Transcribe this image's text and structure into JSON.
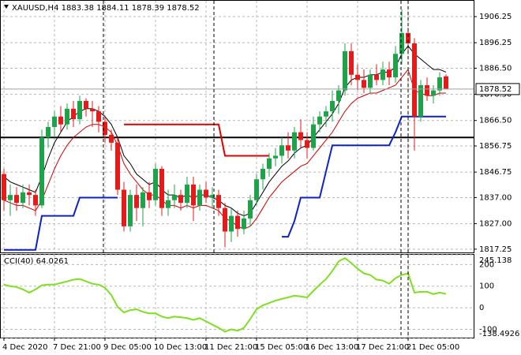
{
  "chart_data": {
    "type": "candlestick",
    "title": "XAUUSD,H4",
    "categories": [
      "4 Dec 2020",
      null,
      null,
      null,
      null,
      null,
      null,
      null,
      "7 Dec 21:00",
      null,
      null,
      null,
      null,
      null,
      null,
      null,
      "9 Dec 05:00",
      null,
      null,
      null,
      null,
      null,
      null,
      null,
      "10 Dec 13:00",
      null,
      null,
      null,
      null,
      null,
      null,
      null,
      "11 Dec 21:00",
      null,
      null,
      null,
      null,
      null,
      null,
      null,
      "15 Dec 05:00",
      null,
      null,
      null,
      null,
      null,
      null,
      null,
      "16 Dec 13:00",
      null,
      null,
      null,
      null,
      null,
      null,
      null,
      "17 Dec 21:00",
      null,
      null,
      null,
      null,
      null,
      null,
      null,
      "21 Dec 05:00",
      null,
      null,
      null,
      null,
      null,
      null
    ],
    "open": [
      1846,
      1836,
      1838,
      1835,
      1839,
      1838,
      1834,
      1860,
      1864,
      1868,
      1865,
      1871,
      1867,
      1874,
      1871,
      1870,
      1866,
      1861,
      1858,
      1840,
      1826,
      1838,
      1833,
      1839,
      1836,
      1848,
      1833,
      1836,
      1838,
      1835,
      1842,
      1834,
      1840,
      1837,
      1838,
      1833,
      1824,
      1830,
      1825,
      1829,
      1836,
      1844,
      1848,
      1852,
      1853,
      1857,
      1855,
      1862,
      1859,
      1856,
      1865,
      1868,
      1870,
      1874,
      1878,
      1893,
      1884,
      1882,
      1879,
      1884,
      1882,
      1886,
      1883,
      1892,
      1900,
      1896,
      1868,
      1880,
      1876,
      1878,
      1883.38
    ],
    "high": [
      1848,
      1842,
      1841,
      1842,
      1842,
      1840,
      1863,
      1866,
      1870,
      1872,
      1873,
      1874,
      1876,
      1875,
      1874,
      1872,
      1868,
      1863,
      1860,
      1843,
      1840,
      1842,
      1841,
      1843,
      1850,
      1849,
      1840,
      1842,
      1840,
      1845,
      1845,
      1842,
      1843,
      1841,
      1840,
      1835,
      1833,
      1832,
      1832,
      1838,
      1846,
      1850,
      1854,
      1856,
      1860,
      1862,
      1864,
      1867,
      1862,
      1868,
      1870,
      1872,
      1878,
      1880,
      1896,
      1896,
      1888,
      1886,
      1886,
      1888,
      1889,
      1889,
      1895,
      1909,
      1902,
      1898,
      1882,
      1883,
      1880,
      1885,
      1884.11
    ],
    "low": [
      1832,
      1830,
      1832,
      1833,
      1834,
      1830,
      1833,
      1856,
      1860,
      1862,
      1863,
      1864,
      1865,
      1868,
      1864,
      1862,
      1858,
      1855,
      1838,
      1824,
      1824,
      1828,
      1826,
      1833,
      1834,
      1830,
      1830,
      1833,
      1832,
      1833,
      1828,
      1832,
      1835,
      1833,
      1830,
      1818,
      1820,
      1822,
      1823,
      1826,
      1834,
      1840,
      1845,
      1849,
      1850,
      1852,
      1852,
      1856,
      1852,
      1855,
      1862,
      1864,
      1866,
      1869,
      1876,
      1880,
      1878,
      1877,
      1877,
      1880,
      1880,
      1880,
      1881,
      1888,
      1892,
      1855,
      1866,
      1874,
      1873,
      1876,
      1878.39
    ],
    "close": [
      1836,
      1838,
      1835,
      1839,
      1838,
      1834,
      1860,
      1864,
      1868,
      1865,
      1871,
      1867,
      1874,
      1871,
      1870,
      1866,
      1861,
      1858,
      1840,
      1826,
      1838,
      1833,
      1839,
      1836,
      1848,
      1833,
      1836,
      1838,
      1835,
      1842,
      1834,
      1840,
      1837,
      1838,
      1833,
      1824,
      1830,
      1825,
      1829,
      1836,
      1844,
      1848,
      1852,
      1853,
      1857,
      1855,
      1862,
      1859,
      1856,
      1865,
      1868,
      1870,
      1874,
      1878,
      1893,
      1884,
      1882,
      1879,
      1884,
      1882,
      1886,
      1883,
      1892,
      1900,
      1896,
      1868,
      1880,
      1876,
      1878,
      1883,
      1878.52
    ],
    "up_color": "#1fa34a",
    "down_color": "#e41b1b",
    "ylim": [
      1816,
      1912
    ],
    "yticks": [
      1906.25,
      1896.25,
      {
        "value": 1886.5,
        "label": "1886.50"
      },
      {
        "value": 1876.5,
        "label": "1876.50"
      },
      {
        "value": 1866.5,
        "label": "1866.50"
      },
      1856.75,
      1846.75,
      {
        "value": 1837,
        "label": "1837.00"
      },
      {
        "value": 1827,
        "label": "1827.00"
      },
      1817.25
    ],
    "grid": true,
    "hline": {
      "value": 1860,
      "color": "#000000"
    },
    "overlays": [
      {
        "color": "#000000",
        "width": 1,
        "values": [
          1845,
          1843,
          1842,
          1841,
          1840,
          1839,
          1845,
          1852,
          1858,
          1862,
          1866,
          1868,
          1870,
          1871,
          1871,
          1870,
          1868,
          1865,
          1860,
          1853,
          1850,
          1846,
          1844,
          1842,
          1843,
          1840,
          1838,
          1838,
          1837,
          1838,
          1837,
          1838,
          1838,
          1837,
          1836,
          1834,
          1833,
          1831,
          1830,
          1831,
          1835,
          1839,
          1843,
          1846,
          1849,
          1851,
          1854,
          1856,
          1857,
          1860,
          1863,
          1866,
          1869,
          1873,
          1879,
          1882,
          1883,
          1883,
          1884,
          1884,
          1885,
          1885,
          1887,
          1892,
          1895,
          1892,
          1890,
          1888,
          1886,
          1886,
          1885
        ]
      },
      {
        "color": "#cc0000",
        "width": 1,
        "values": [
          1836,
          1835,
          1834,
          1834,
          1833,
          1832,
          1836,
          1842,
          1848,
          1853,
          1857,
          1860,
          1862,
          1864,
          1865,
          1865,
          1864,
          1862,
          1857,
          1850,
          1846,
          1843,
          1840,
          1838,
          1838,
          1836,
          1834,
          1834,
          1833,
          1834,
          1833,
          1834,
          1834,
          1833,
          1832,
          1829,
          1828,
          1826,
          1825,
          1826,
          1829,
          1833,
          1837,
          1840,
          1843,
          1845,
          1847,
          1849,
          1850,
          1853,
          1856,
          1859,
          1862,
          1866,
          1870,
          1873,
          1875,
          1876,
          1877,
          1877,
          1878,
          1879,
          1880,
          1883,
          1886,
          1878,
          1877,
          1876,
          1876,
          1877,
          1877
        ]
      },
      {
        "color": "#0a22c8",
        "width": 2,
        "values": [
          1817,
          1817,
          1817,
          1817,
          1817,
          1817,
          1830,
          1830,
          1830,
          1830,
          1830,
          1830,
          1837,
          1837,
          1837,
          1837,
          1837,
          1837,
          1837,
          null,
          null,
          null,
          null,
          null,
          null,
          null,
          null,
          null,
          null,
          null,
          null,
          null,
          null,
          null,
          null,
          null,
          null,
          null,
          null,
          null,
          null,
          null,
          null,
          null,
          1822,
          1822,
          1828,
          1837,
          1837,
          1837,
          1837,
          1847,
          1857,
          1857,
          1857,
          1857,
          1857,
          1857,
          1857,
          1857,
          1857,
          1857,
          1862,
          1868,
          1868,
          1868,
          1868,
          1868,
          1868,
          1868,
          1868
        ]
      },
      {
        "color": "#e00000",
        "width": 2,
        "values": [
          null,
          null,
          null,
          null,
          null,
          null,
          null,
          null,
          null,
          null,
          null,
          null,
          null,
          null,
          null,
          null,
          null,
          null,
          null,
          1865,
          1865,
          1865,
          1865,
          1865,
          1865,
          1865,
          1865,
          1865,
          1865,
          1865,
          1865,
          1865,
          1865,
          1865,
          1865,
          1853,
          1853,
          1853,
          1853,
          1853,
          1853,
          1853,
          1853,
          null,
          null,
          null,
          null,
          null,
          null,
          null,
          null,
          null,
          null,
          null,
          null,
          null,
          null,
          null,
          null,
          null,
          null,
          null,
          null,
          null,
          null,
          null,
          null,
          null,
          null,
          null,
          null
        ]
      }
    ],
    "indicator": {
      "title": "CCI(40)",
      "color": "#7ee01e",
      "values": [
        107,
        100,
        96,
        85,
        70,
        85,
        104,
        107,
        107,
        115,
        122,
        130,
        133,
        122,
        111,
        107,
        93,
        59,
        4,
        -22,
        -11,
        -7,
        -19,
        -26,
        -26,
        -41,
        -48,
        -41,
        -44,
        -48,
        -56,
        -48,
        -63,
        -78,
        -93,
        -111,
        -100,
        -107,
        -93,
        -52,
        -7,
        11,
        22,
        33,
        41,
        48,
        56,
        52,
        48,
        78,
        107,
        133,
        170,
        215,
        230,
        207,
        181,
        159,
        152,
        130,
        126,
        111,
        137,
        152,
        159,
        70,
        74,
        74,
        63,
        70,
        64.0261
      ],
      "ylim": [
        -138.4926,
        245.138
      ],
      "yticks": [
        245.138,
        200,
        100,
        0,
        -100,
        -138.4926
      ]
    }
  }
}
